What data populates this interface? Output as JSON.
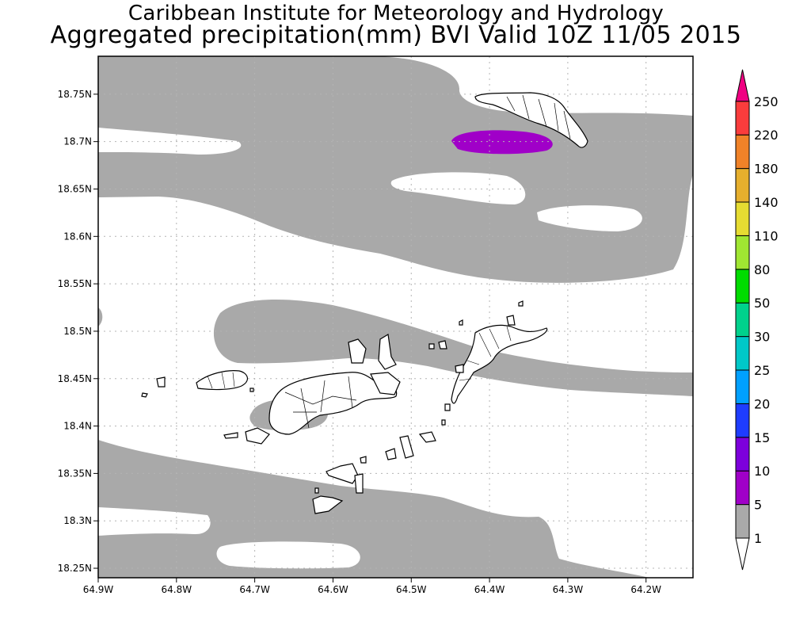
{
  "title": {
    "line1": "Caribbean Institute for Meteorology and Hydrology",
    "line2": "Aggregated precipitation(mm) BVI Valid 10Z 11/05 2015"
  },
  "map": {
    "lon_range": [
      -64.9,
      -64.14
    ],
    "lat_range": [
      18.24,
      18.79
    ],
    "lon_ticks": [
      {
        "value": -64.9,
        "label": "64.9W"
      },
      {
        "value": -64.8,
        "label": "64.8W"
      },
      {
        "value": -64.7,
        "label": "64.7W"
      },
      {
        "value": -64.6,
        "label": "64.6W"
      },
      {
        "value": -64.5,
        "label": "64.5W"
      },
      {
        "value": -64.4,
        "label": "64.4W"
      },
      {
        "value": -64.3,
        "label": "64.3W"
      },
      {
        "value": -64.2,
        "label": "64.2W"
      }
    ],
    "lat_ticks": [
      {
        "value": 18.25,
        "label": "18.25N"
      },
      {
        "value": 18.3,
        "label": "18.3N"
      },
      {
        "value": 18.35,
        "label": "18.35N"
      },
      {
        "value": 18.4,
        "label": "18.4N"
      },
      {
        "value": 18.45,
        "label": "18.45N"
      },
      {
        "value": 18.5,
        "label": "18.5N"
      },
      {
        "value": 18.55,
        "label": "18.55N"
      },
      {
        "value": 18.6,
        "label": "18.6N"
      },
      {
        "value": 18.65,
        "label": "18.65N"
      },
      {
        "value": 18.7,
        "label": "18.7N"
      },
      {
        "value": 18.75,
        "label": "18.75N"
      }
    ],
    "grid": true,
    "colors": {
      "shade_1_5": "#a9a9a9",
      "shade_5_10": "#a000c8",
      "coast": "#000000"
    }
  },
  "legend": {
    "levels": [
      {
        "label": "1",
        "color": "#ffffff"
      },
      {
        "label": "5",
        "color": "#a9a9a9"
      },
      {
        "label": "10",
        "color": "#a000c8"
      },
      {
        "label": "15",
        "color": "#7d00dc"
      },
      {
        "label": "20",
        "color": "#1e3cff"
      },
      {
        "label": "25",
        "color": "#00a0ff"
      },
      {
        "label": "30",
        "color": "#00c8c8"
      },
      {
        "label": "50",
        "color": "#00d28c"
      },
      {
        "label": "80",
        "color": "#00dc00"
      },
      {
        "label": "110",
        "color": "#a0e632"
      },
      {
        "label": "140",
        "color": "#e6dc32"
      },
      {
        "label": "180",
        "color": "#e6af2d"
      },
      {
        "label": "220",
        "color": "#f08228"
      },
      {
        "label": "250",
        "color": "#fa3c3c"
      }
    ],
    "top_color": "#f00082",
    "bottom_color": "#ffffff"
  }
}
